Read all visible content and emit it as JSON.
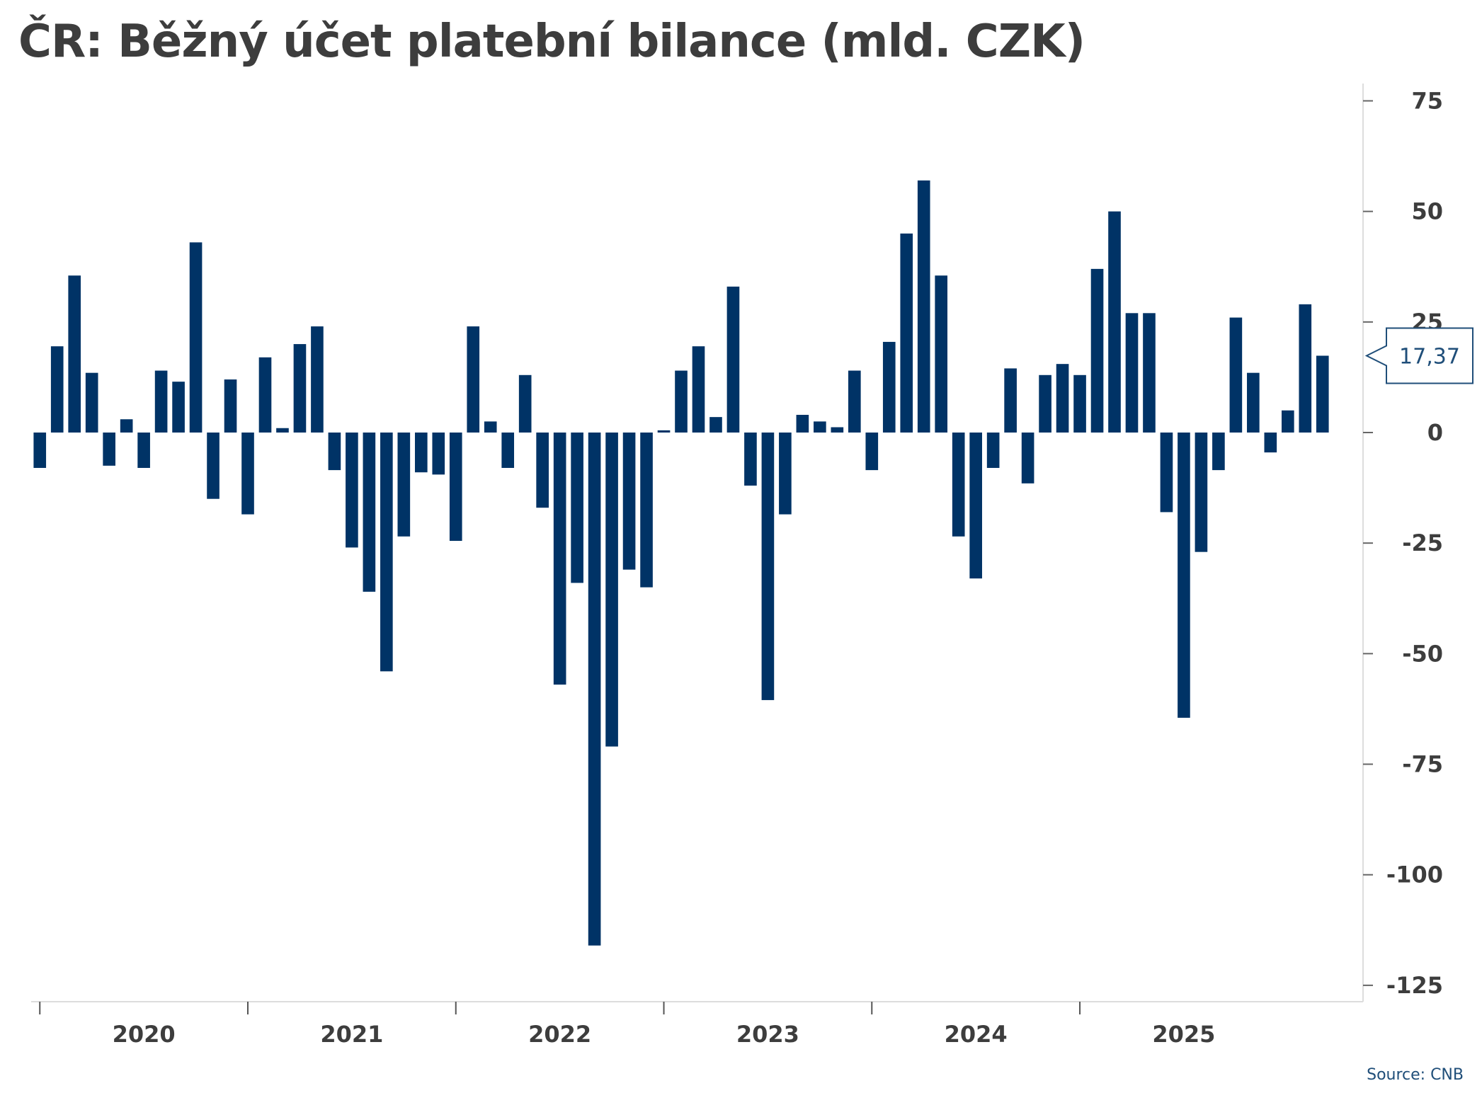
{
  "chart_data": {
    "type": "bar",
    "title": "ČR: Běžný účet platební bilance (mld. CZK)",
    "xlabel": "",
    "ylabel": "",
    "ylim": [
      -130,
      80
    ],
    "y_ticks": [
      75,
      50,
      25,
      0,
      -25,
      -50,
      -75,
      -100,
      -125
    ],
    "x_group_labels": [
      "2020",
      "2021",
      "2022",
      "2023",
      "2024",
      "2025"
    ],
    "bar_color": "#003366",
    "grid": false,
    "y_axis_position": "right",
    "last_value_label": "17,37",
    "source": "Source: CNB",
    "series": [
      {
        "values": [
          -8,
          19.5,
          35.5,
          13.5,
          -7.5,
          3,
          -8,
          14,
          11.5,
          43,
          -15,
          12,
          -18.5,
          17,
          1,
          20,
          24,
          -8.5,
          -26,
          -36,
          -54,
          -23.5,
          -9,
          -9.5,
          -24.5,
          24,
          2.5,
          -8,
          13,
          -17,
          -57,
          -34,
          -116,
          -71,
          -31,
          -35,
          0.5,
          14,
          19.5,
          3.5,
          33,
          -12,
          -60.5,
          -18.5,
          4,
          2.5,
          1.2,
          14,
          -8.5,
          20.5,
          45,
          57,
          35.5,
          -23.5,
          -33,
          -8,
          14.5,
          -11.5,
          13,
          15.5,
          13,
          37,
          50,
          27,
          27,
          -18,
          -64.5,
          -27,
          -8.5,
          26,
          13.5,
          -4.5,
          5,
          29,
          17.37
        ]
      }
    ]
  }
}
